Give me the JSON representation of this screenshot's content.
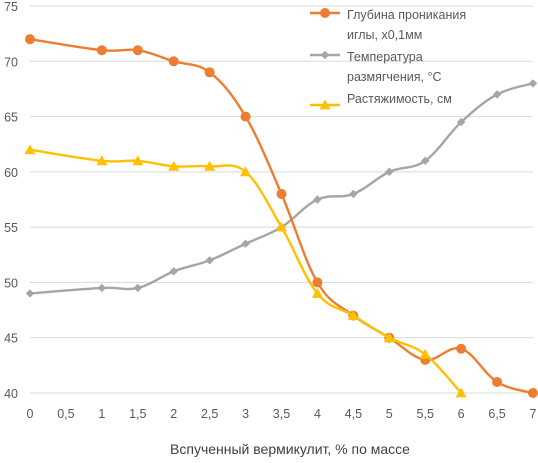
{
  "chart_data": {
    "type": "line",
    "title": "",
    "xlabel": "Вспученный  вермикулит,  %  по массе",
    "ylabel": "",
    "x": [
      0,
      1,
      1.5,
      2,
      2.5,
      3,
      3.5,
      4,
      4.5,
      5,
      5.5,
      6,
      6.5,
      7
    ],
    "x_tick_labels": [
      "0",
      "0,5",
      "1",
      "1,5",
      "2",
      "2,5",
      "3",
      "3,5",
      "4",
      "4,5",
      "5",
      "5,5",
      "6",
      "6,5",
      "7"
    ],
    "y_tick_labels": [
      "40",
      "45",
      "50",
      "55",
      "60",
      "65",
      "70",
      "75"
    ],
    "xlim": [
      0,
      7
    ],
    "ylim": [
      40,
      75
    ],
    "grid": "horizontal",
    "legend_position": "top-right",
    "series": [
      {
        "name": "Глубина проникания иглы, х0,1мм",
        "color": "#ED7D31",
        "marker": "circle",
        "x": [
          0,
          1,
          1.5,
          2,
          2.5,
          3,
          3.5,
          4,
          4.5,
          5,
          5.5,
          6,
          6.5,
          7
        ],
        "values": [
          72,
          71,
          71,
          70,
          69,
          65,
          58,
          50,
          47,
          45,
          43,
          44,
          41,
          40
        ]
      },
      {
        "name": "Температура размягчения, °С",
        "color": "#A5A5A5",
        "marker": "diamond",
        "x": [
          0,
          1,
          1.5,
          2,
          2.5,
          3,
          3.5,
          4,
          4.5,
          5,
          5.5,
          6,
          6.5,
          7
        ],
        "values": [
          49,
          49.5,
          49.5,
          51,
          52,
          53.5,
          55,
          57.5,
          58,
          60,
          61,
          64.5,
          67,
          68
        ]
      },
      {
        "name": "Растяжимость, см",
        "color": "#FFC000",
        "marker": "triangle",
        "x": [
          0,
          1,
          1.5,
          2,
          2.5,
          3,
          3.5,
          4,
          4.5,
          5,
          5.5,
          6
        ],
        "values": [
          62,
          61,
          61,
          60.5,
          60.5,
          60,
          55,
          49,
          47,
          45,
          43.5,
          40
        ]
      }
    ],
    "legend_lines": [
      [
        "Глубина проникания",
        "иглы, х0,1мм"
      ],
      [
        "Температура",
        "размягчения, °С"
      ],
      [
        "Растяжимость, см"
      ]
    ]
  }
}
